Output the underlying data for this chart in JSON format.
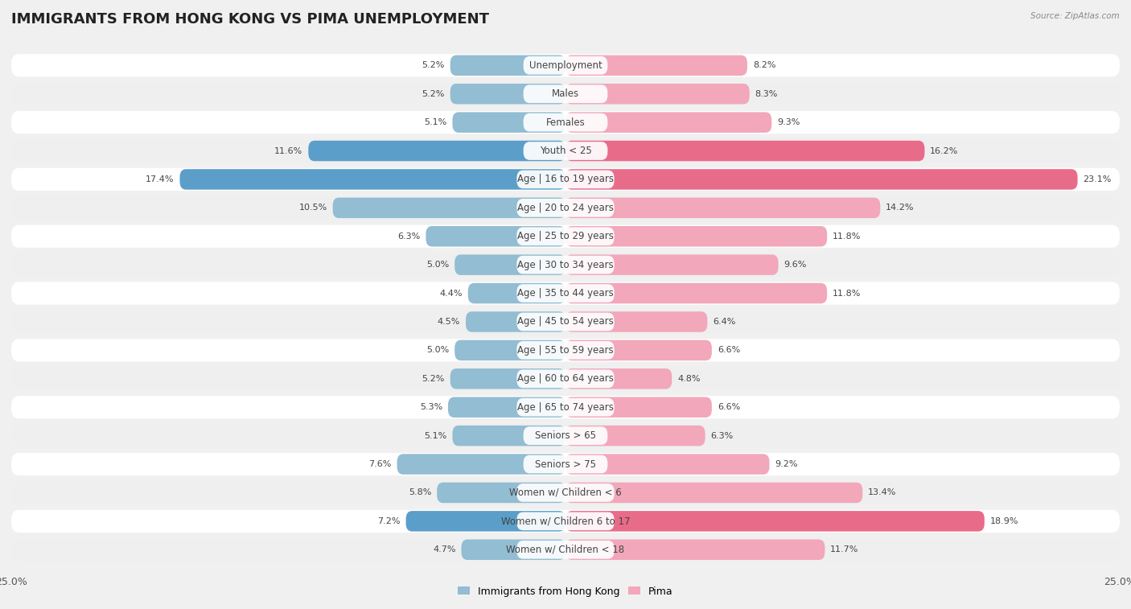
{
  "title": "IMMIGRANTS FROM HONG KONG VS PIMA UNEMPLOYMENT",
  "source": "Source: ZipAtlas.com",
  "categories": [
    "Unemployment",
    "Males",
    "Females",
    "Youth < 25",
    "Age | 16 to 19 years",
    "Age | 20 to 24 years",
    "Age | 25 to 29 years",
    "Age | 30 to 34 years",
    "Age | 35 to 44 years",
    "Age | 45 to 54 years",
    "Age | 55 to 59 years",
    "Age | 60 to 64 years",
    "Age | 65 to 74 years",
    "Seniors > 65",
    "Seniors > 75",
    "Women w/ Children < 6",
    "Women w/ Children 6 to 17",
    "Women w/ Children < 18"
  ],
  "left_values": [
    5.2,
    5.2,
    5.1,
    11.6,
    17.4,
    10.5,
    6.3,
    5.0,
    4.4,
    4.5,
    5.0,
    5.2,
    5.3,
    5.1,
    7.6,
    5.8,
    7.2,
    4.7
  ],
  "right_values": [
    8.2,
    8.3,
    9.3,
    16.2,
    23.1,
    14.2,
    11.8,
    9.6,
    11.8,
    6.4,
    6.6,
    4.8,
    6.6,
    6.3,
    9.2,
    13.4,
    18.9,
    11.7
  ],
  "left_color": "#92bdd3",
  "right_color": "#f2a7ba",
  "left_highlight_color": "#5b9ec9",
  "right_highlight_color": "#e96b8a",
  "highlight_indices": [
    3,
    4,
    16
  ],
  "row_colors": [
    "#ffffff",
    "#efefef"
  ],
  "background_color": "#f0f0f0",
  "axis_max": 25.0,
  "legend_left": "Immigrants from Hong Kong",
  "legend_right": "Pima",
  "title_fontsize": 13,
  "label_fontsize": 8.5,
  "value_fontsize": 8.0
}
